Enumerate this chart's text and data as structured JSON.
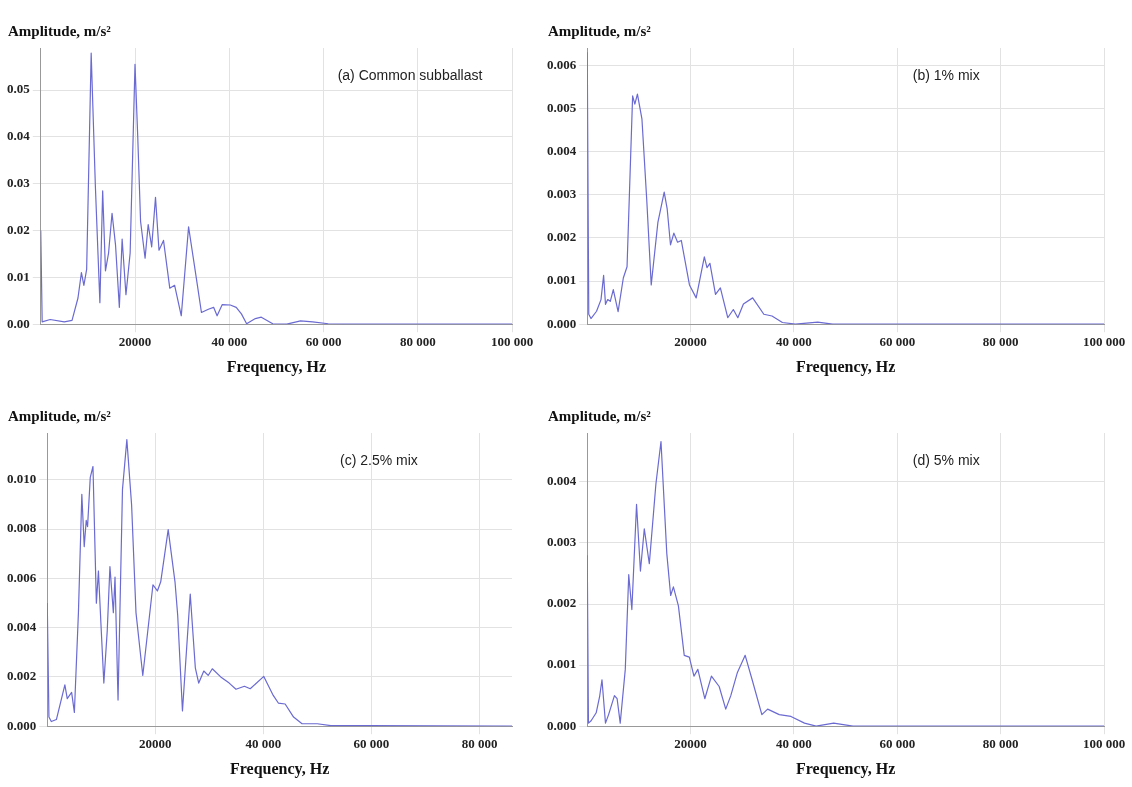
{
  "chart_data": [
    {
      "type": "line",
      "xlabel": "Frequency, Hz",
      "ylabel": "Amplitude, m/s²",
      "annotations": [
        "(a) Common subballast"
      ],
      "grid": true,
      "marker": "none",
      "line_style": "solid",
      "xlim": [
        0,
        100000
      ],
      "xticks": [
        {
          "value": 20000,
          "label": "20000"
        },
        {
          "value": 40000,
          "label": "40 000"
        },
        {
          "value": 60000,
          "label": "60 000"
        },
        {
          "value": 80000,
          "label": "80 000"
        },
        {
          "value": 100000,
          "label": "100 000"
        }
      ],
      "ylim": [
        0,
        0.059
      ],
      "yticks": [
        {
          "value": 0,
          "label": "0.00"
        },
        {
          "value": 0.01,
          "label": "0.01"
        },
        {
          "value": 0.02,
          "label": "0.02"
        },
        {
          "value": 0.03,
          "label": "0.03"
        },
        {
          "value": 0.04,
          "label": "0.04"
        },
        {
          "value": 0.05,
          "label": "0.05"
        }
      ],
      "series": [
        {
          "color": "#6a6ad2",
          "x": [
            0,
            300,
            2000,
            5000,
            6640,
            7900,
            8630,
            9150,
            9740,
            10700,
            11590,
            12550,
            13140,
            13730,
            14390,
            15130,
            15870,
            16680,
            17270,
            18080,
            18970,
            20000,
            20590,
            21180,
            22140,
            22800,
            23540,
            24350,
            25090,
            26050,
            27380,
            28410,
            29820,
            31370,
            33140,
            34100,
            35570,
            36680,
            37420,
            38520,
            40220,
            41480,
            42580,
            43690,
            45540,
            46800,
            49230,
            52200,
            55130,
            57700,
            61000,
            64000,
            100000
          ],
          "values": [
            0.02,
            0.0005,
            0.001,
            0.0005,
            0.0008,
            0.0056,
            0.011,
            0.0083,
            0.0117,
            0.0579,
            0.0295,
            0.0046,
            0.0285,
            0.0114,
            0.0152,
            0.0237,
            0.0169,
            0.0036,
            0.0182,
            0.0063,
            0.0152,
            0.0555,
            0.0398,
            0.022,
            0.0141,
            0.0213,
            0.0165,
            0.0271,
            0.0158,
            0.0179,
            0.0077,
            0.0083,
            0.0018,
            0.0208,
            0.009,
            0.0025,
            0.0032,
            0.0036,
            0.0018,
            0.0042,
            0.0041,
            0.0036,
            0.0022,
            0.0001,
            0.0012,
            0.0015,
            0.0001,
            0,
            0.0007,
            0.0005,
            0.0001,
            0,
            0
          ]
        }
      ]
    },
    {
      "type": "line",
      "xlabel": "Frequency, Hz",
      "ylabel": "Amplitude, m/s²",
      "annotations": [
        "(b) 1% mix"
      ],
      "grid": true,
      "marker": "none",
      "line_style": "solid",
      "xlim": [
        0,
        100000
      ],
      "xticks": [
        {
          "value": 20000,
          "label": "20000"
        },
        {
          "value": 40000,
          "label": "40 000"
        },
        {
          "value": 60000,
          "label": "60 000"
        },
        {
          "value": 80000,
          "label": "80 000"
        },
        {
          "value": 100000,
          "label": "100 000"
        }
      ],
      "ylim": [
        0,
        0.0064
      ],
      "yticks": [
        {
          "value": 0,
          "label": "0.000"
        },
        {
          "value": 0.001,
          "label": "0.001"
        },
        {
          "value": 0.002,
          "label": "0.002"
        },
        {
          "value": 0.003,
          "label": "0.003"
        },
        {
          "value": 0.004,
          "label": "0.004"
        },
        {
          "value": 0.005,
          "label": "0.005"
        },
        {
          "value": 0.006,
          "label": "0.006"
        }
      ],
      "series": [
        {
          "color": "#6a6ad2",
          "x": [
            0,
            290,
            720,
            1800,
            2660,
            3170,
            3530,
            3960,
            4460,
            5040,
            5970,
            6980,
            7700,
            8780,
            9210,
            9710,
            10580,
            11510,
            12380,
            13670,
            14890,
            15470,
            16110,
            16760,
            17480,
            18200,
            19780,
            21080,
            22660,
            23170,
            23740,
            24820,
            25760,
            27190,
            28270,
            29140,
            30220,
            32010,
            34170,
            35750,
            37770,
            40290,
            44600,
            47480,
            100000
          ],
          "values": [
            0.0063,
            0.00023,
            0.00013,
            0.0003,
            0.00057,
            0.00113,
            0.00046,
            0.00057,
            0.00053,
            0.0008,
            0.00029,
            0.00107,
            0.00133,
            0.00529,
            0.0051,
            0.00533,
            0.00476,
            0.00289,
            0.00091,
            0.00236,
            0.00306,
            0.00267,
            0.00184,
            0.00211,
            0.0019,
            0.00194,
            0.00091,
            0.00061,
            0.00156,
            0.00131,
            0.00141,
            0.00069,
            0.00084,
            0.00015,
            0.00034,
            0.00015,
            0.00047,
            0.00061,
            0.00023,
            0.00019,
            4e-05,
            0,
            5e-05,
            0,
            0
          ]
        }
      ]
    },
    {
      "type": "line",
      "xlabel": "Frequency, Hz",
      "ylabel": "Amplitude, m/s²",
      "annotations": [
        "(c) 2.5% mix"
      ],
      "grid": true,
      "marker": "none",
      "line_style": "solid",
      "xlim": [
        0,
        86000
      ],
      "xticks": [
        {
          "value": 20000,
          "label": "20000"
        },
        {
          "value": 40000,
          "label": "40 000"
        },
        {
          "value": 60000,
          "label": "60 000"
        },
        {
          "value": 80000,
          "label": "80 000"
        }
      ],
      "ylim": [
        0,
        0.0119
      ],
      "yticks": [
        {
          "value": 0,
          "label": "0.000"
        },
        {
          "value": 0.002,
          "label": "0.002"
        },
        {
          "value": 0.004,
          "label": "0.004"
        },
        {
          "value": 0.006,
          "label": "0.006"
        },
        {
          "value": 0.008,
          "label": "0.008"
        },
        {
          "value": 0.01,
          "label": "0.010"
        }
      ],
      "series": [
        {
          "color": "#6a6ad2",
          "x": [
            0,
            310,
            750,
            1690,
            3260,
            3700,
            4510,
            5020,
            5770,
            6400,
            6840,
            7210,
            7460,
            7960,
            8460,
            9090,
            9470,
            9970,
            10470,
            11100,
            11600,
            12230,
            12540,
            13100,
            13920,
            14730,
            15610,
            16420,
            17680,
            19560,
            20380,
            21000,
            22380,
            23640,
            24140,
            25020,
            26460,
            27400,
            28030,
            28970,
            29780,
            30540,
            32100,
            33670,
            34920,
            36490,
            37560,
            40070,
            41820,
            42760,
            44020,
            45580,
            47150,
            49970,
            52480,
            59380,
            86000
          ],
          "values": [
            0.005,
            0.00037,
            0.00019,
            0.00027,
            0.00168,
            0.00112,
            0.00137,
            0.00056,
            0.00461,
            0.00941,
            0.00729,
            0.00835,
            0.0081,
            0.0101,
            0.01054,
            0.00499,
            0.0063,
            0.00399,
            0.00175,
            0.00387,
            0.00648,
            0.00461,
            0.00605,
            0.00106,
            0.0096,
            0.01163,
            0.00898,
            0.00461,
            0.00206,
            0.00574,
            0.00549,
            0.00586,
            0.00798,
            0.00586,
            0.00449,
            0.00062,
            0.00536,
            0.00237,
            0.00175,
            0.00224,
            0.00206,
            0.00233,
            0.002,
            0.00175,
            0.0015,
            0.00162,
            0.00152,
            0.00202,
            0.00125,
            0.00094,
            0.0009,
            0.00037,
            0.0001,
            0.0001,
            2e-05,
            2e-05,
            0
          ]
        }
      ]
    },
    {
      "type": "line",
      "xlabel": "Frequency, Hz",
      "ylabel": "Amplitude, m/s²",
      "annotations": [
        "(d) 5% mix"
      ],
      "grid": true,
      "marker": "none",
      "line_style": "solid",
      "xlim": [
        0,
        100000
      ],
      "xticks": [
        {
          "value": 20000,
          "label": "20000"
        },
        {
          "value": 40000,
          "label": "40 000"
        },
        {
          "value": 60000,
          "label": "60 000"
        },
        {
          "value": 80000,
          "label": "80 000"
        },
        {
          "value": 100000,
          "label": "100 000"
        }
      ],
      "ylim": [
        0,
        0.0048
      ],
      "yticks": [
        {
          "value": 0,
          "label": "0.000"
        },
        {
          "value": 0.001,
          "label": "0.001"
        },
        {
          "value": 0.002,
          "label": "0.002"
        },
        {
          "value": 0.003,
          "label": "0.003"
        },
        {
          "value": 0.004,
          "label": "0.004"
        }
      ],
      "series": [
        {
          "color": "#6a6ad2",
          "x": [
            0,
            230,
            750,
            1730,
            2400,
            2850,
            3530,
            4130,
            5260,
            5780,
            6380,
            7360,
            8030,
            8630,
            9540,
            10290,
            11040,
            12010,
            13290,
            14270,
            15390,
            16140,
            16670,
            17640,
            18770,
            19750,
            20650,
            21400,
            22750,
            24030,
            25530,
            26800,
            27780,
            29060,
            30560,
            31910,
            33790,
            34910,
            37160,
            39420,
            42040,
            44300,
            47680,
            51430,
            100000
          ],
          "values": [
            0.0028,
            5e-05,
            9e-05,
            0.00022,
            0.00049,
            0.00076,
            5e-05,
            0.00019,
            0.0005,
            0.00045,
            5e-05,
            0.00093,
            0.00248,
            0.00191,
            0.00363,
            0.00254,
            0.00323,
            0.00266,
            0.00397,
            0.00466,
            0.00283,
            0.00214,
            0.00228,
            0.00197,
            0.00116,
            0.00113,
            0.00082,
            0.00093,
            0.00045,
            0.00082,
            0.00065,
            0.00028,
            0.0005,
            0.00088,
            0.00116,
            0.00076,
            0.00019,
            0.00028,
            0.00019,
            0.00016,
            5e-05,
            0,
            5e-05,
            0,
            0
          ]
        }
      ]
    }
  ]
}
